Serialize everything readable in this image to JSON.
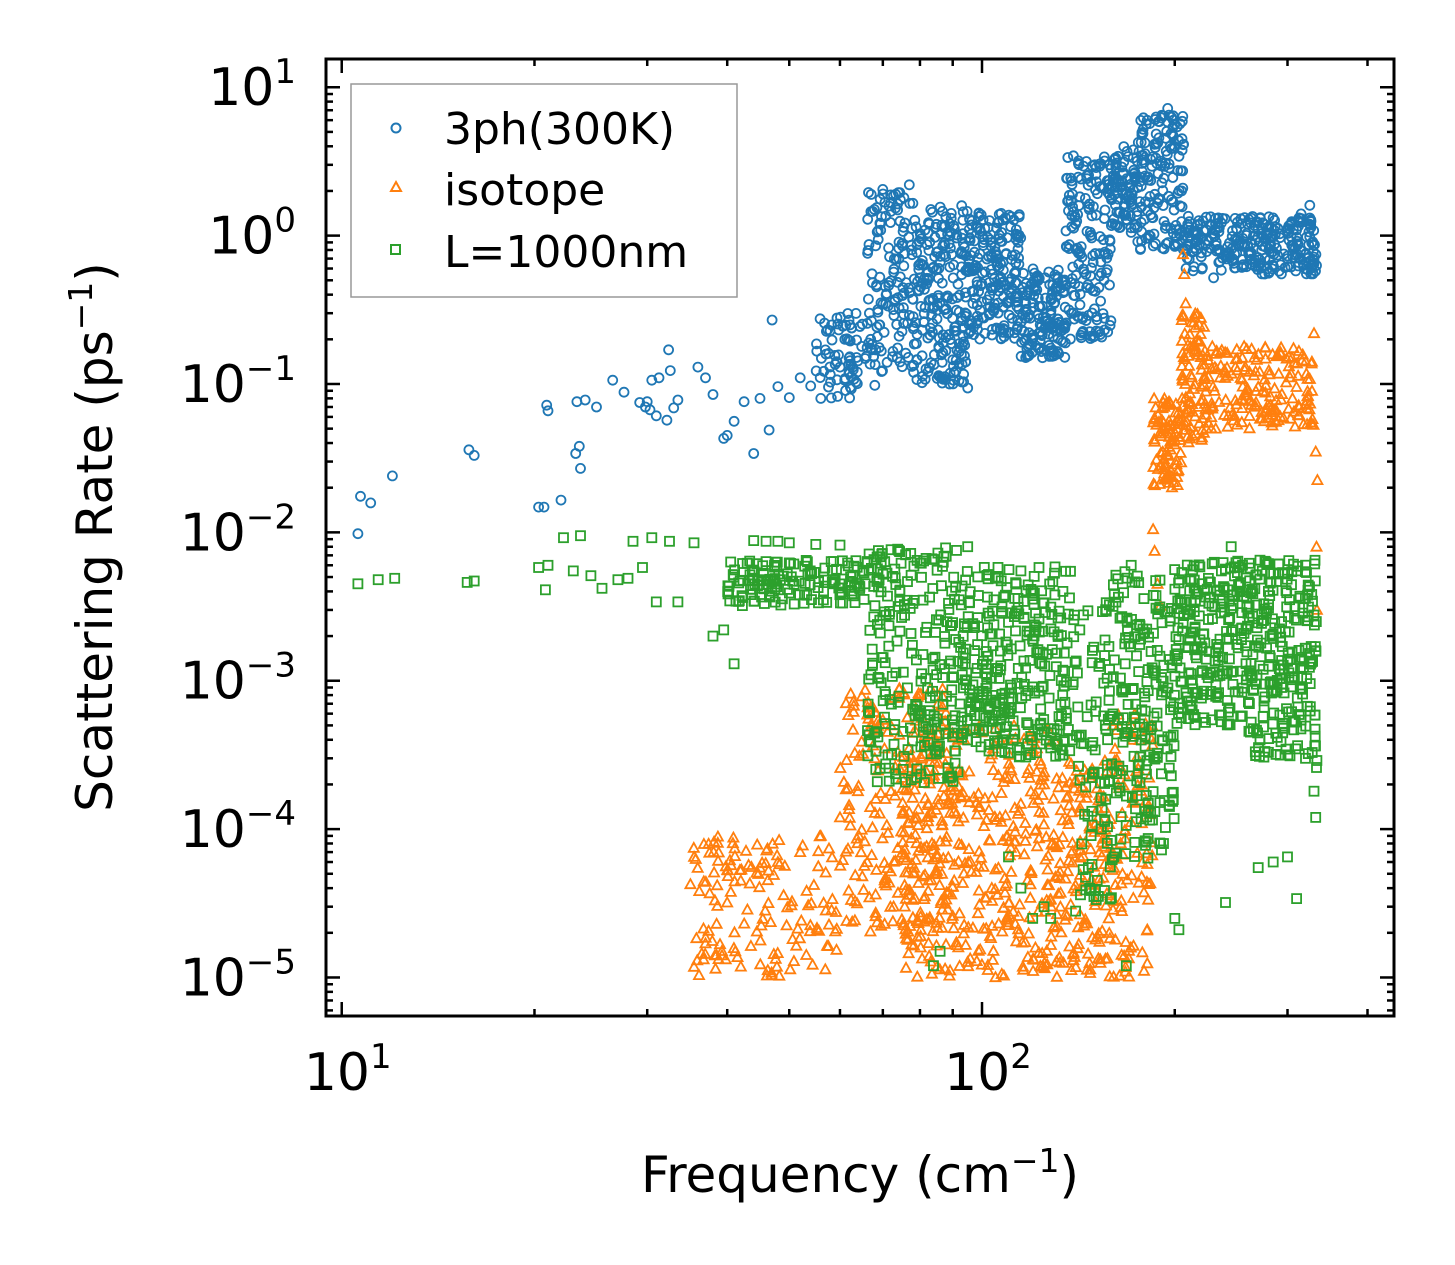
{
  "chart_data": {
    "type": "scatter",
    "xscale": "log",
    "yscale": "log",
    "xlabel": "Frequency (cm",
    "xlabel_sup": "−1",
    "xlabel_end": ")",
    "ylabel": "Scattering Rate (ps",
    "ylabel_sup": "−1",
    "ylabel_end": ")",
    "xlim": [
      9.45,
      440
    ],
    "ylim": [
      5.5e-06,
      15.5
    ],
    "x_ticks": [
      {
        "value": 10,
        "base": "10",
        "exp": "1"
      },
      {
        "value": 100,
        "base": "10",
        "exp": "2"
      }
    ],
    "y_ticks": [
      {
        "value": 10,
        "base": "10",
        "exp": "1"
      },
      {
        "value": 1,
        "base": "10",
        "exp": "0"
      },
      {
        "value": 0.1,
        "base": "10",
        "exp": "−1"
      },
      {
        "value": 0.01,
        "base": "10",
        "exp": "−2"
      },
      {
        "value": 0.001,
        "base": "10",
        "exp": "−3"
      },
      {
        "value": 0.0001,
        "base": "10",
        "exp": "−4"
      },
      {
        "value": 1e-05,
        "base": "10",
        "exp": "−5"
      }
    ],
    "legend_position": "top-left",
    "series": [
      {
        "name": "3ph(300K)",
        "marker": "circle",
        "color": "#1f77b4",
        "points": [
          [
            10.6,
            0.0098
          ],
          [
            10.7,
            0.0175
          ],
          [
            11.1,
            0.0158
          ],
          [
            12.0,
            0.024
          ],
          [
            15.8,
            0.036
          ],
          [
            16.1,
            0.033
          ],
          [
            20.3,
            0.0148
          ],
          [
            20.7,
            0.0148
          ],
          [
            20.9,
            0.072
          ],
          [
            21.0,
            0.066
          ],
          [
            22.0,
            0.0165
          ],
          [
            23.2,
            0.034
          ],
          [
            23.5,
            0.038
          ],
          [
            23.6,
            0.027
          ],
          [
            23.3,
            0.076
          ],
          [
            24.0,
            0.078
          ],
          [
            25.0,
            0.07
          ],
          [
            26.5,
            0.106
          ],
          [
            27.6,
            0.088
          ],
          [
            29.2,
            0.075
          ],
          [
            29.8,
            0.07
          ],
          [
            30.0,
            0.076
          ],
          [
            30.3,
            0.067
          ],
          [
            30.5,
            0.106
          ],
          [
            31.0,
            0.061
          ],
          [
            31.3,
            0.11
          ],
          [
            32.2,
            0.057
          ],
          [
            32.4,
            0.17
          ],
          [
            32.6,
            0.123
          ],
          [
            33.0,
            0.069
          ],
          [
            33.5,
            0.078
          ],
          [
            36.0,
            0.13
          ],
          [
            37.0,
            0.11
          ],
          [
            38.0,
            0.085
          ],
          [
            39.5,
            0.043
          ],
          [
            40.0,
            0.045
          ],
          [
            41.0,
            0.056
          ],
          [
            42.5,
            0.076
          ],
          [
            44.0,
            0.034
          ],
          [
            45.0,
            0.08
          ],
          [
            46.5,
            0.049
          ],
          [
            47.0,
            0.27
          ],
          [
            48.0,
            0.096
          ],
          [
            50.0,
            0.081
          ],
          [
            52.0,
            0.11
          ],
          [
            54.0,
            0.097
          ],
          [
            56.0,
            0.08
          ],
          [
            58.0,
            0.103
          ],
          [
            60.0,
            0.13
          ],
          [
            62.0,
            0.15
          ],
          [
            64.0,
            0.143
          ],
          [
            68.0,
            0.098
          ],
          [
            70.0,
            2.05
          ],
          [
            72.0,
            1.88
          ],
          [
            74.0,
            1.95
          ],
          [
            75.5,
            1.8
          ],
          [
            77.0,
            2.2
          ],
          [
            78.0,
            1.65
          ],
          [
            80.0,
            0.52
          ],
          [
            85.0,
            0.59
          ],
          [
            89.0,
            0.1
          ],
          [
            91.0,
            0.122
          ],
          [
            95.0,
            0.094
          ],
          [
            100.0,
            0.28
          ],
          [
            110.0,
            0.22
          ],
          [
            115.0,
            0.26
          ],
          [
            120.0,
            0.2
          ],
          [
            125.0,
            0.17
          ],
          [
            128.0,
            0.3
          ],
          [
            140.0,
            1.2
          ],
          [
            150.0,
            3.0
          ],
          [
            155.0,
            2.1
          ],
          [
            168.0,
            1.9
          ],
          [
            178.0,
            2.7
          ],
          [
            187.0,
            6.3
          ],
          [
            195.0,
            7.2
          ],
          [
            199.0,
            6.0
          ],
          [
            205.0,
            2.0
          ],
          [
            210.0,
            1.35
          ],
          [
            215.0,
            0.9
          ],
          [
            220.0,
            0.72
          ],
          [
            230.0,
            0.52
          ],
          [
            240.0,
            0.72
          ],
          [
            250.0,
            1.1
          ],
          [
            260.0,
            0.85
          ],
          [
            270.0,
            0.62
          ],
          [
            285.0,
            0.98
          ],
          [
            300.0,
            0.7
          ],
          [
            315.0,
            1.4
          ],
          [
            325.0,
            1.6
          ],
          [
            330.0,
            0.68
          ]
        ],
        "bands": [
          {
            "x": [
              55,
              66
            ],
            "y": [
              0.08,
              0.3
            ],
            "count": 70
          },
          {
            "x": [
              66,
              78
            ],
            "y": [
              0.12,
              2.0
            ],
            "count": 130
          },
          {
            "x": [
              78,
              95
            ],
            "y": [
              0.1,
              1.6
            ],
            "count": 220
          },
          {
            "x": [
              95,
              115
            ],
            "y": [
              0.2,
              1.5
            ],
            "count": 200
          },
          {
            "x": [
              115,
              135
            ],
            "y": [
              0.15,
              0.6
            ],
            "count": 150
          },
          {
            "x": [
              135,
              160
            ],
            "y": [
              0.2,
              3.5
            ],
            "count": 170
          },
          {
            "x": [
              160,
              175
            ],
            "y": [
              1.0,
              4.0
            ],
            "count": 80
          },
          {
            "x": [
              175,
              207
            ],
            "y": [
              0.8,
              6.5
            ],
            "count": 150
          },
          {
            "x": [
              207,
              333
            ],
            "y": [
              0.55,
              1.35
            ],
            "count": 280
          }
        ]
      },
      {
        "name": "isotope",
        "marker": "triangle",
        "color": "#ff7f0e",
        "points": [
          [
            35.5,
            1.18e-05
          ],
          [
            36.5,
            1.45e-05
          ],
          [
            37.0,
            1.7e-05
          ],
          [
            38.5,
            2.3e-05
          ],
          [
            40.0,
            3.2e-05
          ],
          [
            42.0,
            4.5e-05
          ],
          [
            45.0,
            5.5e-05
          ],
          [
            48.0,
            6e-05
          ],
          [
            52.0,
            7e-05
          ],
          [
            56.0,
            9e-05
          ],
          [
            60.0,
            0.00012
          ],
          [
            64.0,
            0.00018
          ],
          [
            68.0,
            0.0003
          ],
          [
            72.0,
            0.0005
          ],
          [
            80.0,
            0.0008
          ],
          [
            85.0,
            0.0006
          ],
          [
            92.0,
            0.00025
          ],
          [
            98.0,
            0.00015
          ],
          [
            110.0,
            0.0004
          ],
          [
            125.0,
            0.0002
          ],
          [
            150.0,
            4e-05
          ],
          [
            160.0,
            0.0005
          ],
          [
            172.0,
            0.0004
          ],
          [
            185.0,
            0.0105
          ],
          [
            186.0,
            0.0075
          ],
          [
            188.0,
            0.0045
          ],
          [
            190.0,
            0.0032
          ],
          [
            206.0,
            0.75
          ],
          [
            207.0,
            0.55
          ],
          [
            208.0,
            0.35
          ],
          [
            330.0,
            0.22
          ],
          [
            332.0,
            0.035
          ],
          [
            333.0,
            0.008
          ],
          [
            333.5,
            0.003
          ],
          [
            334.0,
            0.0225
          ]
        ],
        "bands": [
          {
            "x": [
              35,
              60
            ],
            "y": [
              1e-05,
              9e-05
            ],
            "count": 140
          },
          {
            "x": [
              60,
              90
            ],
            "y": [
              2e-05,
              0.0009
            ],
            "count": 200
          },
          {
            "x": [
              75,
              130
            ],
            "y": [
              1e-05,
              0.0005
            ],
            "count": 380
          },
          {
            "x": [
              130,
              160
            ],
            "y": [
              1e-05,
              0.0003
            ],
            "count": 150
          },
          {
            "x": [
              160,
              185
            ],
            "y": [
              1e-05,
              0.0006
            ],
            "count": 90
          },
          {
            "x": [
              185,
              205
            ],
            "y": [
              0.02,
              0.08
            ],
            "count": 90
          },
          {
            "x": [
              205,
              225
            ],
            "y": [
              0.04,
              0.3
            ],
            "count": 90
          },
          {
            "x": [
              225,
              330
            ],
            "y": [
              0.05,
              0.18
            ],
            "count": 170
          }
        ]
      },
      {
        "name": "L=1000nm",
        "marker": "square",
        "color": "#2ca02c",
        "points": [
          [
            10.6,
            0.0045
          ],
          [
            11.4,
            0.0048
          ],
          [
            12.1,
            0.0049
          ],
          [
            15.7,
            0.0046
          ],
          [
            16.1,
            0.0047
          ],
          [
            20.3,
            0.0058
          ],
          [
            21.0,
            0.006
          ],
          [
            20.8,
            0.0041
          ],
          [
            22.2,
            0.0092
          ],
          [
            23.0,
            0.0055
          ],
          [
            23.6,
            0.0095
          ],
          [
            24.5,
            0.0051
          ],
          [
            25.5,
            0.0042
          ],
          [
            27.0,
            0.0048
          ],
          [
            28.0,
            0.0049
          ],
          [
            28.5,
            0.0087
          ],
          [
            29.5,
            0.0058
          ],
          [
            30.5,
            0.0092
          ],
          [
            31.0,
            0.0034
          ],
          [
            32.5,
            0.0087
          ],
          [
            33.5,
            0.0034
          ],
          [
            35.5,
            0.0085
          ],
          [
            38.0,
            0.002
          ],
          [
            39.5,
            0.0022
          ],
          [
            41.0,
            0.0013
          ],
          [
            44.0,
            0.0088
          ],
          [
            46.0,
            0.0087
          ],
          [
            48.0,
            0.0087
          ],
          [
            50.0,
            0.0085
          ],
          [
            55.0,
            0.0083
          ],
          [
            60.0,
            0.0082
          ],
          [
            95.0,
            0.008
          ],
          [
            115.0,
            0.0055
          ],
          [
            245.0,
            0.008
          ],
          [
            110.0,
            6.5e-05
          ],
          [
            115.0,
            4e-05
          ],
          [
            120.0,
            2.5e-05
          ],
          [
            125.0,
            3e-05
          ],
          [
            128.0,
            2.5e-05
          ],
          [
            84.0,
            1.2e-05
          ],
          [
            86.0,
            1.5e-05
          ],
          [
            140.0,
            2.8e-05
          ],
          [
            168.0,
            1.2e-05
          ],
          [
            200.0,
            2.5e-05
          ],
          [
            203.0,
            2.1e-05
          ],
          [
            240.0,
            3.2e-05
          ],
          [
            270.0,
            5.5e-05
          ],
          [
            285.0,
            6e-05
          ],
          [
            300.0,
            6.5e-05
          ],
          [
            310.0,
            3.4e-05
          ],
          [
            330.0,
            0.00018
          ],
          [
            332.0,
            0.00012
          ],
          [
            333.0,
            0.00026
          ],
          [
            333.5,
            0.00029
          ]
        ],
        "bands": [
          {
            "x": [
              40,
              66
            ],
            "y": [
              0.0032,
              0.0065
            ],
            "count": 140
          },
          {
            "x": [
              66,
              92
            ],
            "y": [
              0.0002,
              0.008
            ],
            "count": 240
          },
          {
            "x": [
              92,
              140
            ],
            "y": [
              0.0003,
              0.006
            ],
            "count": 320
          },
          {
            "x": [
              140,
              160
            ],
            "y": [
              3e-05,
              0.0035
            ],
            "count": 90
          },
          {
            "x": [
              160,
              200
            ],
            "y": [
              6e-05,
              0.006
            ],
            "count": 200
          },
          {
            "x": [
              200,
              260
            ],
            "y": [
              0.0005,
              0.0065
            ],
            "count": 220
          },
          {
            "x": [
              260,
              333
            ],
            "y": [
              0.0003,
              0.0065
            ],
            "count": 240
          }
        ]
      }
    ]
  }
}
